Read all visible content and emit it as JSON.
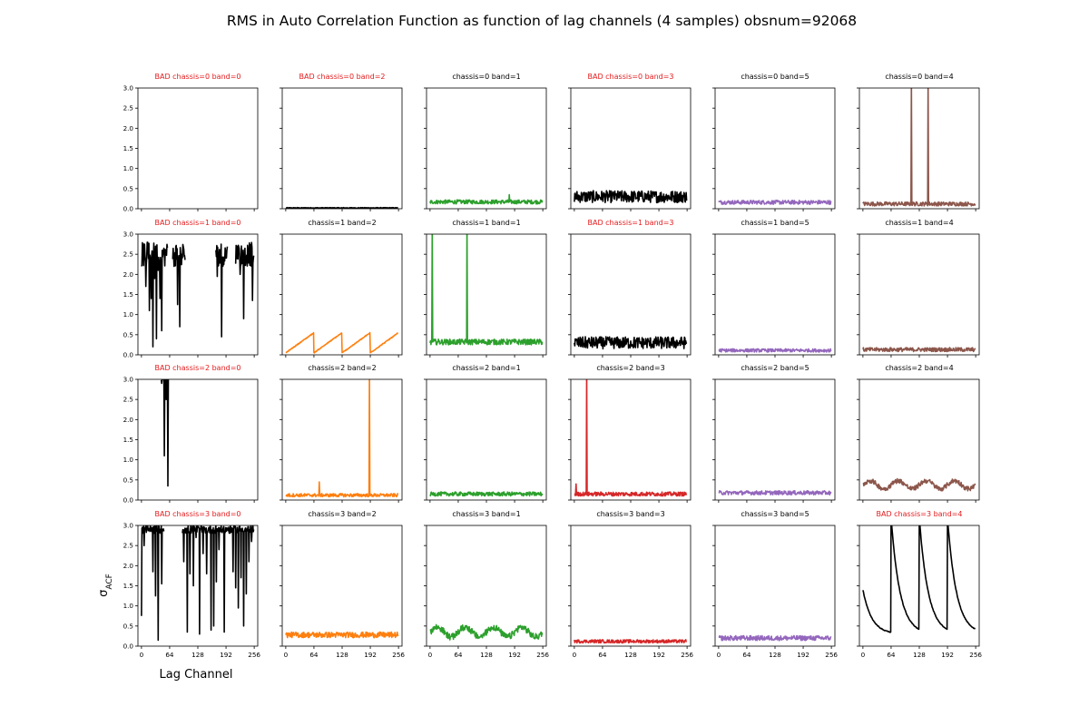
{
  "title": "RMS in Auto Correlation Function as function of lag channels (4 samples) obsnum=92068",
  "xlabel": "Lag Channel",
  "ylabel_base": "σ",
  "ylabel_sub": "ACF",
  "colors": {
    "bad_title": "#e41a1c",
    "ok_title": "#000000",
    "bad_series": "#000000",
    "band_colors": {
      "0": "#1f77b4",
      "1": "#2ca02c",
      "2": "#ff7f0e",
      "3": "#d62728",
      "4": "#8c564b",
      "5": "#9467bd"
    }
  },
  "chart_data": {
    "type": "line",
    "layout": "4x6 grid of small multiples, shared axes",
    "xlim": [
      -8,
      264
    ],
    "ylim": [
      0,
      3.0
    ],
    "xticks": [
      0,
      64,
      128,
      192,
      256
    ],
    "yticks": [
      0.0,
      0.5,
      1.0,
      1.5,
      2.0,
      2.5,
      3.0
    ],
    "grid": false,
    "panels": [
      {
        "title": "BAD chassis=0 band=0",
        "bad": true,
        "band": 0,
        "baseline": 0.0,
        "noise": 0,
        "pattern": "empty"
      },
      {
        "title": "BAD chassis=0 band=2",
        "bad": true,
        "band": 2,
        "baseline": 0.02,
        "noise": 0.01,
        "pattern": "flat"
      },
      {
        "title": "chassis=0 band=1",
        "bad": false,
        "band": 1,
        "baseline": 0.17,
        "noise": 0.05,
        "pattern": "flat",
        "spikes": [
          [
            180,
            0.35
          ]
        ]
      },
      {
        "title": "BAD chassis=0 band=3",
        "bad": true,
        "band": 3,
        "baseline": 0.3,
        "noise": 0.15,
        "pattern": "flat"
      },
      {
        "title": "chassis=0 band=5",
        "bad": false,
        "band": 5,
        "baseline": 0.16,
        "noise": 0.05,
        "pattern": "flat"
      },
      {
        "title": "chassis=0 band=4",
        "bad": false,
        "band": 4,
        "baseline": 0.12,
        "noise": 0.05,
        "pattern": "flat",
        "spikes": [
          [
            110,
            3.2
          ],
          [
            148,
            3.2
          ]
        ]
      },
      {
        "title": "BAD chassis=1 band=0",
        "bad": true,
        "band": 0,
        "baseline": 2.5,
        "noise": 0.3,
        "pattern": "dropouts",
        "dropouts": [
          [
            0,
            2.2
          ],
          [
            10,
            1.7
          ],
          [
            14,
            2.8
          ],
          [
            18,
            1.1
          ],
          [
            22,
            1.4
          ],
          [
            26,
            0.2
          ],
          [
            30,
            1.9
          ],
          [
            34,
            0.4
          ],
          [
            38,
            2.1
          ],
          [
            42,
            1.4
          ],
          [
            46,
            0.6
          ],
          [
            50,
            2.6
          ],
          [
            74,
            2.2
          ],
          [
            82,
            1.25
          ],
          [
            87,
            0.7
          ],
          [
            92,
            2.5
          ],
          [
            172,
            1.95
          ],
          [
            182,
            0.45
          ],
          [
            218,
            2.7
          ],
          [
            224,
            2.0
          ],
          [
            232,
            0.9
          ],
          [
            242,
            2.6
          ],
          [
            252,
            1.35
          ]
        ],
        "gaps": [
          [
            60,
            70
          ],
          [
            100,
            168
          ],
          [
            196,
            212
          ]
        ]
      },
      {
        "title": "chassis=1 band=2",
        "bad": false,
        "band": 2,
        "baseline": 0.05,
        "noise": 0.02,
        "pattern": "sawtooth",
        "period": 64,
        "amp": 0.5
      },
      {
        "title": "chassis=1 band=1",
        "bad": false,
        "band": 1,
        "baseline": 0.32,
        "noise": 0.07,
        "pattern": "flat",
        "spikes": [
          [
            5,
            3.2
          ],
          [
            84,
            3.2
          ]
        ]
      },
      {
        "title": "BAD chassis=1 band=3",
        "bad": true,
        "band": 3,
        "baseline": 0.3,
        "noise": 0.15,
        "pattern": "flat"
      },
      {
        "title": "chassis=1 band=5",
        "bad": false,
        "band": 5,
        "baseline": 0.11,
        "noise": 0.04,
        "pattern": "flat"
      },
      {
        "title": "chassis=1 band=4",
        "bad": false,
        "band": 4,
        "baseline": 0.13,
        "noise": 0.05,
        "pattern": "flat"
      },
      {
        "title": "BAD chassis=2 band=0",
        "bad": true,
        "band": 0,
        "baseline": 3.0,
        "noise": 0.05,
        "pattern": "dropouts",
        "dropouts": [
          [
            46,
            2.9
          ],
          [
            52,
            1.1
          ],
          [
            56,
            2.5
          ],
          [
            60,
            0.35
          ]
        ],
        "gaps": [
          [
            0,
            44
          ],
          [
            62,
            256
          ]
        ]
      },
      {
        "title": "chassis=2 band=2",
        "bad": false,
        "band": 2,
        "baseline": 0.12,
        "noise": 0.04,
        "pattern": "flat",
        "spikes": [
          [
            76,
            0.45
          ],
          [
            190,
            3.2
          ]
        ]
      },
      {
        "title": "chassis=2 band=1",
        "bad": false,
        "band": 1,
        "baseline": 0.15,
        "noise": 0.05,
        "pattern": "flat"
      },
      {
        "title": "chassis=2 band=3",
        "bad": false,
        "band": 3,
        "baseline": 0.15,
        "noise": 0.05,
        "pattern": "flat",
        "spikes": [
          [
            28,
            3.2
          ],
          [
            4,
            0.4
          ]
        ]
      },
      {
        "title": "chassis=2 band=5",
        "bad": false,
        "band": 5,
        "baseline": 0.18,
        "noise": 0.05,
        "pattern": "flat"
      },
      {
        "title": "chassis=2 band=4",
        "bad": false,
        "band": 4,
        "baseline": 0.38,
        "noise": 0.06,
        "pattern": "wave",
        "amp": 0.1
      },
      {
        "title": "BAD chassis=3 band=0",
        "bad": true,
        "band": 0,
        "baseline": 2.9,
        "noise": 0.1,
        "pattern": "dropouts",
        "dropouts": [
          [
            0,
            0.75
          ],
          [
            6,
            2.5
          ],
          [
            18,
            2.9
          ],
          [
            26,
            1.85
          ],
          [
            32,
            1.25
          ],
          [
            38,
            0.15
          ],
          [
            46,
            1.55
          ],
          [
            96,
            2.1
          ],
          [
            104,
            0.35
          ],
          [
            110,
            1.8
          ],
          [
            118,
            1.5
          ],
          [
            124,
            2.7
          ],
          [
            132,
            0.3
          ],
          [
            140,
            2.3
          ],
          [
            148,
            1.8
          ],
          [
            158,
            0.4
          ],
          [
            164,
            0.5
          ],
          [
            170,
            1.6
          ],
          [
            176,
            2.4
          ],
          [
            188,
            0.35
          ],
          [
            208,
            1.85
          ],
          [
            214,
            1.45
          ],
          [
            220,
            0.95
          ],
          [
            226,
            1.7
          ],
          [
            232,
            0.5
          ],
          [
            238,
            1.3
          ],
          [
            244,
            2.1
          ],
          [
            250,
            2.6
          ]
        ],
        "gaps": [
          [
            52,
            92
          ]
        ]
      },
      {
        "title": "chassis=3 band=2",
        "bad": false,
        "band": 2,
        "baseline": 0.28,
        "noise": 0.07,
        "pattern": "flat"
      },
      {
        "title": "chassis=3 band=1",
        "bad": false,
        "band": 1,
        "baseline": 0.35,
        "noise": 0.08,
        "pattern": "wave",
        "amp": 0.12
      },
      {
        "title": "chassis=3 band=3",
        "bad": false,
        "band": 3,
        "baseline": 0.12,
        "noise": 0.04,
        "pattern": "flat"
      },
      {
        "title": "chassis=3 band=5",
        "bad": false,
        "band": 5,
        "baseline": 0.2,
        "noise": 0.06,
        "pattern": "flat"
      },
      {
        "title": "BAD chassis=3 band=4",
        "bad": true,
        "band": 4,
        "baseline": 0.3,
        "noise": 0.02,
        "pattern": "decay",
        "period": 64,
        "start": 1.4,
        "peak": 3.2
      }
    ]
  }
}
